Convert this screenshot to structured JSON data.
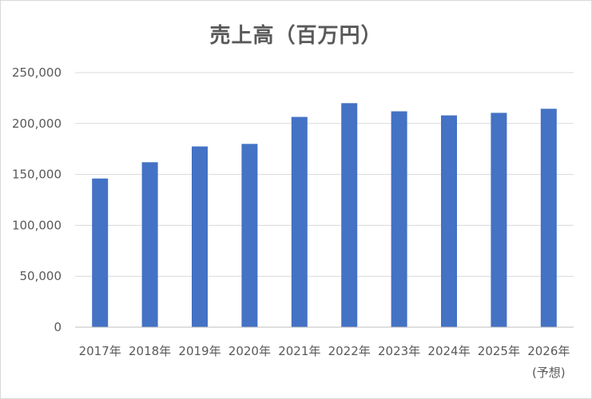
{
  "chart_data": {
    "type": "bar",
    "title": "売上高（百万円）",
    "xlabel": "",
    "ylabel": "",
    "categories": [
      "2017年",
      "2018年",
      "2019年",
      "2020年",
      "2021年",
      "2022年",
      "2023年",
      "2024年",
      "2025年",
      "2026年"
    ],
    "category_sublabels": [
      "",
      "",
      "",
      "",
      "",
      "",
      "",
      "",
      "",
      "(予想)"
    ],
    "values": [
      146000,
      162000,
      177500,
      180000,
      206500,
      220000,
      212000,
      208000,
      210500,
      214500
    ],
    "ylim": [
      0,
      250000
    ],
    "yticks": [
      0,
      50000,
      100000,
      150000,
      200000,
      250000
    ],
    "ytick_labels": [
      "0",
      "50,000",
      "100,000",
      "150,000",
      "200,000",
      "250,000"
    ],
    "grid": true,
    "legend": "none",
    "bar_color": "#4472c4",
    "grid_color": "#d9d9d9"
  }
}
